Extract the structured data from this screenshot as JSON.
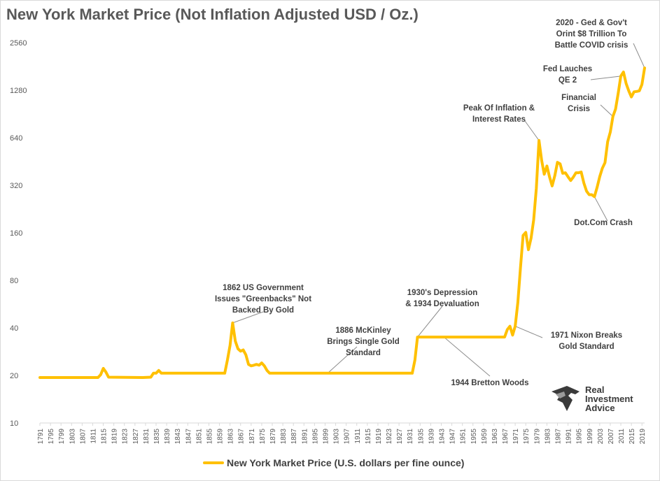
{
  "chart_data": {
    "type": "line",
    "title": "New York Market Price (Not Inflation Adjusted USD / Oz.)",
    "xlabel": "",
    "ylabel": "",
    "yscale": "log2",
    "ylim": [
      10,
      3200
    ],
    "xlim": [
      1791,
      2020
    ],
    "y_ticks": [
      10,
      20,
      40,
      80,
      160,
      320,
      640,
      1280,
      2560
    ],
    "x_ticks": [
      "1791",
      "1795",
      "1799",
      "1803",
      "1807",
      "1811",
      "1815",
      "1819",
      "1823",
      "1827",
      "1831",
      "1835",
      "1839",
      "1843",
      "1847",
      "1851",
      "1855",
      "1859",
      "1863",
      "1867",
      "1871",
      "1875",
      "1879",
      "1883",
      "1887",
      "1891",
      "1895",
      "1899",
      "1903",
      "1907",
      "1911",
      "1915",
      "1919",
      "1923",
      "1927",
      "1931",
      "1935",
      "1939",
      "1943",
      "1947",
      "1951",
      "1955",
      "1959",
      "1963",
      "1967",
      "1971",
      "1975",
      "1979",
      "1983",
      "1987",
      "1991",
      "1995",
      "1999",
      "2003",
      "2007",
      "2011",
      "2015",
      "2019"
    ],
    "series": [
      {
        "name": "New York Market Price (U.S. dollars per fine ounce)",
        "color": "#ffc000",
        "x": [
          1791,
          1813,
          1814,
          1815,
          1816,
          1817,
          1830,
          1833,
          1834,
          1835,
          1836,
          1837,
          1860,
          1861,
          1862,
          1863,
          1864,
          1865,
          1866,
          1867,
          1868,
          1869,
          1870,
          1871,
          1872,
          1873,
          1874,
          1875,
          1876,
          1877,
          1878,
          1879,
          1880,
          1930,
          1932,
          1933,
          1934,
          1935,
          1967,
          1968,
          1969,
          1970,
          1971,
          1972,
          1973,
          1974,
          1975,
          1976,
          1977,
          1978,
          1979,
          1980,
          1981,
          1982,
          1983,
          1984,
          1985,
          1986,
          1987,
          1988,
          1989,
          1990,
          1991,
          1992,
          1993,
          1994,
          1995,
          1996,
          1997,
          1998,
          1999,
          2000,
          2001,
          2002,
          2003,
          2004,
          2005,
          2006,
          2007,
          2008,
          2009,
          2010,
          2011,
          2012,
          2013,
          2014,
          2015,
          2016,
          2017,
          2018,
          2019,
          2020
        ],
        "values": [
          19.39,
          19.39,
          20.2,
          22.16,
          21.0,
          19.5,
          19.39,
          19.5,
          20.67,
          20.67,
          21.5,
          20.67,
          20.67,
          20.67,
          25.0,
          31.0,
          43.0,
          33.0,
          29.5,
          28.5,
          29.0,
          27.0,
          23.5,
          23.0,
          23.2,
          23.5,
          23.2,
          24.0,
          23.0,
          21.5,
          20.67,
          20.67,
          20.67,
          20.67,
          20.67,
          25.0,
          35.0,
          35.0,
          35.0,
          39.0,
          41.0,
          36.0,
          41.0,
          58.0,
          97.0,
          154.0,
          161.0,
          125.0,
          148.0,
          193.0,
          306.0,
          615.0,
          460.0,
          376.0,
          424.0,
          361.0,
          317.0,
          368.0,
          447.0,
          437.0,
          381.0,
          384.0,
          362.0,
          343.0,
          360.0,
          384.0,
          384.0,
          388.0,
          331.0,
          294.0,
          279.0,
          279.0,
          271.0,
          310.0,
          363.0,
          410.0,
          445.0,
          604.0,
          695.0,
          872.0,
          972.0,
          1225.0,
          1572.0,
          1669.0,
          1411.0,
          1266.0,
          1160.0,
          1250.0,
          1257.0,
          1268.0,
          1393.0,
          1770.0
        ]
      }
    ],
    "annotations": [
      {
        "lines": [
          "2020 - Ged & Gov't",
          "Orint $8 Trillion To",
          "Battle COVID crisis"
        ],
        "target_x": 2020,
        "target_y": 1770
      },
      {
        "lines": [
          "Fed Lauches",
          "QE 2"
        ],
        "target_x": 2011,
        "target_y": 1572
      },
      {
        "lines": [
          "Financial",
          "Crisis"
        ],
        "target_x": 2008,
        "target_y": 872
      },
      {
        "lines": [
          "Peak Of Inflation &",
          "Interest Rates"
        ],
        "target_x": 1980,
        "target_y": 615
      },
      {
        "lines": [
          "Dot.Com Crash"
        ],
        "target_x": 2001,
        "target_y": 271
      },
      {
        "lines": [
          "1930's Depression",
          "& 1934 Devaluation"
        ],
        "target_x": 1934,
        "target_y": 35
      },
      {
        "lines": [
          "1862 US Government",
          "Issues \"Greenbacks\" Not",
          "Backed By Gold"
        ],
        "target_x": 1864,
        "target_y": 43
      },
      {
        "lines": [
          "1886 McKinley",
          "Brings Single Gold",
          "Standard"
        ],
        "target_x": 1900,
        "target_y": 20.67
      },
      {
        "lines": [
          "1944 Bretton Woods"
        ],
        "target_x": 1944,
        "target_y": 35
      },
      {
        "lines": [
          "1971 Nixon Breaks",
          "Gold Standard"
        ],
        "target_x": 1971,
        "target_y": 41
      }
    ],
    "legend_position": "bottom",
    "grid": false
  },
  "legend": {
    "label": "New York Market Price (U.S. dollars per fine ounce)"
  },
  "logo": {
    "line1": "Real",
    "line2": "Investment",
    "line3": "Advice"
  }
}
